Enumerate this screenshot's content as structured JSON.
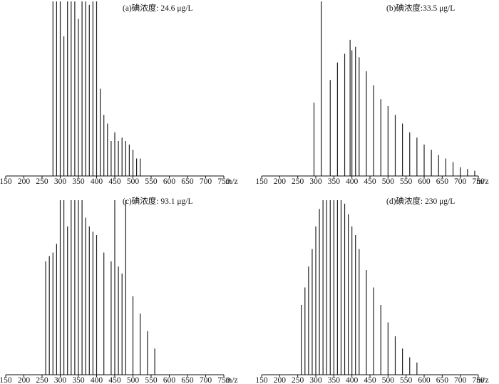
{
  "chart_data": [
    {
      "type": "bar",
      "panel_label": "(a)碘浓度: 24.6 μg/L",
      "xlabel": "m/z",
      "xlim": [
        150,
        750
      ],
      "xticks": [
        150,
        200,
        250,
        300,
        350,
        400,
        450,
        500,
        550,
        600,
        650,
        700,
        750
      ],
      "ylim": [
        0,
        1
      ],
      "grid": false,
      "x": [
        280,
        290,
        300,
        310,
        320,
        330,
        340,
        350,
        360,
        370,
        380,
        390,
        400,
        410,
        420,
        430,
        440,
        450,
        460,
        470,
        480,
        490,
        500,
        510,
        520
      ],
      "values": [
        1.0,
        1.0,
        1.0,
        0.8,
        1.0,
        1.0,
        1.0,
        0.9,
        1.0,
        1.0,
        0.98,
        1.0,
        1.0,
        0.5,
        0.35,
        0.3,
        0.2,
        0.25,
        0.2,
        0.22,
        0.2,
        0.18,
        0.15,
        0.1,
        0.1
      ]
    },
    {
      "type": "bar",
      "panel_label": "(b)碘浓度:33.5 μg/L",
      "xlabel": "m/z",
      "xlim": [
        150,
        750
      ],
      "xticks": [
        150,
        200,
        250,
        300,
        350,
        400,
        450,
        500,
        550,
        600,
        650,
        700,
        750
      ],
      "ylim": [
        0,
        1
      ],
      "grid": false,
      "x": [
        295,
        315,
        340,
        360,
        380,
        395,
        400,
        410,
        420,
        440,
        460,
        480,
        500,
        520,
        540,
        560,
        580,
        600,
        620,
        640,
        660,
        680,
        700,
        720,
        740
      ],
      "values": [
        0.42,
        1.0,
        0.55,
        0.65,
        0.7,
        0.78,
        0.72,
        0.74,
        0.68,
        0.6,
        0.52,
        0.44,
        0.4,
        0.35,
        0.3,
        0.25,
        0.22,
        0.18,
        0.15,
        0.12,
        0.1,
        0.08,
        0.05,
        0.04,
        0.03
      ]
    },
    {
      "type": "bar",
      "panel_label": "(c)碘浓度: 93.1 μg/L",
      "xlabel": "m/z",
      "xlim": [
        150,
        750
      ],
      "xticks": [
        150,
        200,
        250,
        300,
        350,
        400,
        450,
        500,
        550,
        600,
        650,
        700,
        750
      ],
      "ylim": [
        0,
        1
      ],
      "grid": false,
      "x": [
        260,
        270,
        280,
        290,
        300,
        310,
        320,
        330,
        340,
        350,
        360,
        370,
        380,
        390,
        400,
        420,
        440,
        450,
        460,
        470,
        480,
        500,
        520,
        540,
        560
      ],
      "values": [
        0.65,
        0.68,
        0.7,
        0.75,
        1.0,
        1.0,
        0.85,
        1.0,
        1.0,
        1.0,
        1.0,
        0.9,
        0.85,
        0.82,
        0.8,
        0.7,
        0.65,
        1.0,
        0.62,
        0.58,
        1.0,
        0.45,
        0.35,
        0.25,
        0.15
      ]
    },
    {
      "type": "bar",
      "panel_label": "(d)碘浓度: 230 μg/L",
      "xlabel": "m/z",
      "xlim": [
        150,
        750
      ],
      "xticks": [
        150,
        200,
        250,
        300,
        350,
        400,
        450,
        500,
        550,
        600,
        650,
        700,
        750
      ],
      "ylim": [
        0,
        1
      ],
      "grid": false,
      "x": [
        260,
        270,
        280,
        290,
        300,
        310,
        320,
        330,
        340,
        350,
        360,
        370,
        380,
        390,
        400,
        410,
        420,
        440,
        460,
        480,
        500,
        520,
        540,
        560,
        580
      ],
      "values": [
        0.4,
        0.5,
        0.62,
        0.72,
        0.85,
        0.95,
        1.0,
        1.0,
        1.0,
        1.0,
        1.0,
        1.0,
        0.98,
        0.92,
        0.85,
        0.8,
        0.72,
        0.6,
        0.5,
        0.4,
        0.3,
        0.22,
        0.15,
        0.1,
        0.07
      ]
    }
  ]
}
